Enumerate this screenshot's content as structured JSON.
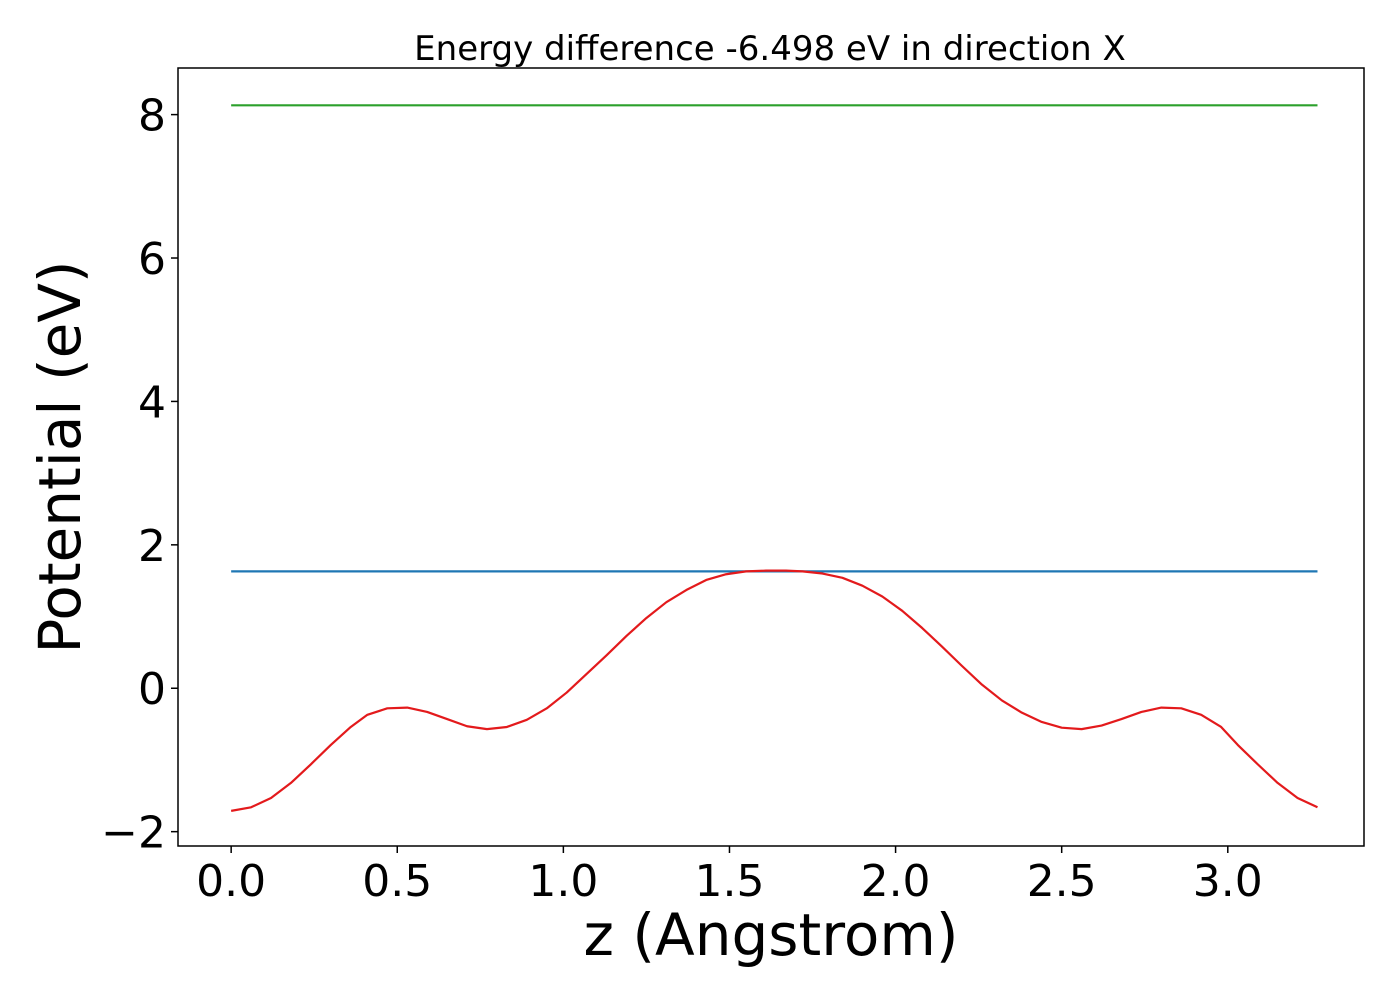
{
  "chart_data": {
    "type": "line",
    "title": "Energy difference -6.498 eV in direction X",
    "xlabel": "z (Angstrom)",
    "ylabel": "Potential (eV)",
    "xlim": [
      -0.16,
      3.41
    ],
    "ylim": [
      -2.2,
      8.65
    ],
    "xticks": [
      0.0,
      0.5,
      1.0,
      1.5,
      2.0,
      2.5,
      3.0
    ],
    "xtick_labels": [
      "0.0",
      "0.5",
      "1.0",
      "1.5",
      "2.0",
      "2.5",
      "3.0"
    ],
    "yticks": [
      -2,
      0,
      2,
      4,
      6,
      8
    ],
    "ytick_labels": [
      "−2",
      "0",
      "2",
      "4",
      "6",
      "8"
    ],
    "grid": false,
    "series": [
      {
        "color": "#2ca02c",
        "x": [
          0.0,
          3.27
        ],
        "y": [
          8.13,
          8.13
        ]
      },
      {
        "color": "#1f77b4",
        "x": [
          0.0,
          3.27
        ],
        "y": [
          1.63,
          1.63
        ]
      },
      {
        "color": "#e31a1c",
        "x": [
          0.0,
          0.06,
          0.12,
          0.18,
          0.24,
          0.3,
          0.36,
          0.41,
          0.47,
          0.53,
          0.59,
          0.65,
          0.71,
          0.77,
          0.83,
          0.89,
          0.95,
          1.01,
          1.07,
          1.13,
          1.19,
          1.25,
          1.31,
          1.37,
          1.43,
          1.49,
          1.55,
          1.61,
          1.67,
          1.72,
          1.78,
          1.84,
          1.9,
          1.96,
          2.02,
          2.08,
          2.14,
          2.2,
          2.26,
          2.32,
          2.38,
          2.44,
          2.5,
          2.56,
          2.62,
          2.68,
          2.74,
          2.8,
          2.86,
          2.92,
          2.98,
          3.03,
          3.09,
          3.15,
          3.21,
          3.27
        ],
        "y": [
          -1.71,
          -1.66,
          -1.53,
          -1.32,
          -1.06,
          -0.79,
          -0.54,
          -0.37,
          -0.28,
          -0.27,
          -0.33,
          -0.43,
          -0.53,
          -0.57,
          -0.54,
          -0.44,
          -0.28,
          -0.06,
          0.2,
          0.46,
          0.73,
          0.98,
          1.2,
          1.37,
          1.51,
          1.59,
          1.63,
          1.64,
          1.64,
          1.63,
          1.6,
          1.54,
          1.43,
          1.28,
          1.08,
          0.84,
          0.58,
          0.31,
          0.05,
          -0.17,
          -0.34,
          -0.47,
          -0.55,
          -0.57,
          -0.52,
          -0.43,
          -0.33,
          -0.27,
          -0.28,
          -0.37,
          -0.54,
          -0.79,
          -1.06,
          -1.32,
          -1.53,
          -1.66
        ]
      }
    ]
  }
}
